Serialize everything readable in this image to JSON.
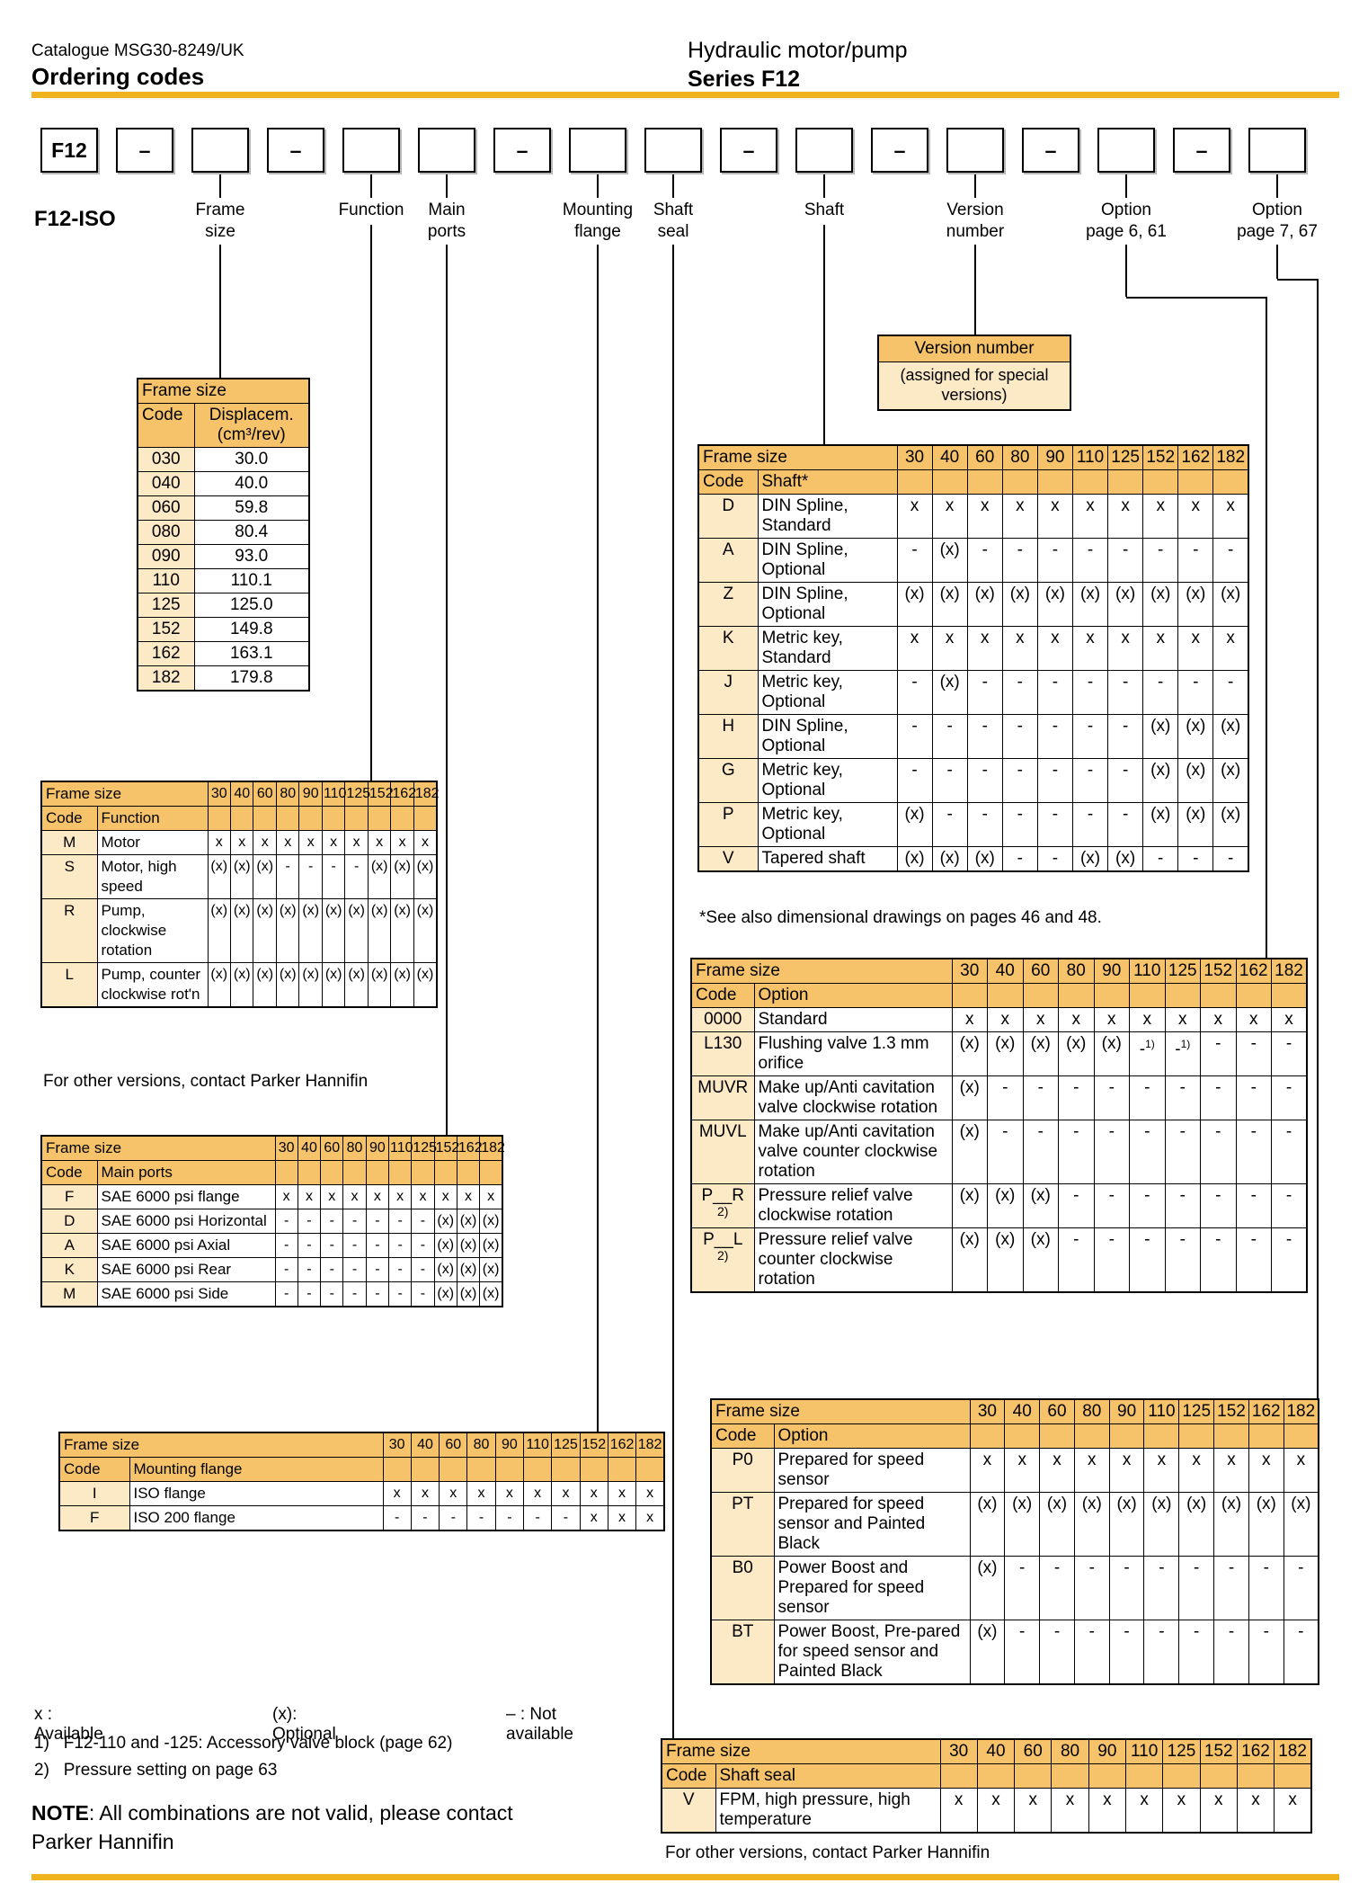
{
  "colors": {
    "header_orange": "#F7C36A",
    "cell_cream": "#FCE9C6",
    "rule_gold": "#EFB320"
  },
  "header": {
    "catalogue": "Catalogue MSG30-8249/UK",
    "section_title": "Ordering codes",
    "product": "Hydraulic motor/pump",
    "series": "Series F12"
  },
  "ordering_code": {
    "prefix": "F12",
    "model_label": "F12-ISO",
    "dash": "–",
    "boxes": [
      "F12",
      "dash",
      "blank",
      "dash",
      "blank",
      "blank",
      "dash",
      "blank",
      "blank",
      "dash",
      "blank",
      "dash",
      "blank",
      "dash",
      "blank",
      "dash",
      "blank"
    ],
    "labels": [
      {
        "line1": "Frame",
        "line2": "size"
      },
      {
        "line1": "Function",
        "line2": ""
      },
      {
        "line1": "Main",
        "line2": "ports"
      },
      {
        "line1": "Mounting",
        "line2": "flange"
      },
      {
        "line1": "Shaft",
        "line2": "seal"
      },
      {
        "line1": "Shaft",
        "line2": ""
      },
      {
        "line1": "Version",
        "line2": "number"
      },
      {
        "line1": "Option",
        "line2": "page 6, 61"
      },
      {
        "line1": "Option",
        "line2": "page 7, 67"
      }
    ]
  },
  "version_callout": {
    "title": "Version number",
    "body": "(assigned for special versions)"
  },
  "frame_sizes": [
    "30",
    "40",
    "60",
    "80",
    "90",
    "110",
    "125",
    "152",
    "162",
    "182"
  ],
  "frame_header": "Frame size",
  "code_header": "Code",
  "tables": {
    "displacement": {
      "title": "Frame size",
      "col1": "Code",
      "col2a": "Displacem.",
      "col2b": "(cm³/rev)",
      "rows": [
        [
          "030",
          "30.0"
        ],
        [
          "040",
          "40.0"
        ],
        [
          "060",
          "59.8"
        ],
        [
          "080",
          "80.4"
        ],
        [
          "090",
          "93.0"
        ],
        [
          "110",
          "110.1"
        ],
        [
          "125",
          "125.0"
        ],
        [
          "152",
          "149.8"
        ],
        [
          "162",
          "163.1"
        ],
        [
          "182",
          "179.8"
        ]
      ]
    },
    "function": {
      "type_header": "Function",
      "rows": [
        {
          "code": "M",
          "label": "Motor",
          "values": [
            "x",
            "x",
            "x",
            "x",
            "x",
            "x",
            "x",
            "x",
            "x",
            "x"
          ]
        },
        {
          "code": "S",
          "label": "Motor, high speed",
          "values": [
            "(x)",
            "(x)",
            "(x)",
            "-",
            "-",
            "-",
            "-",
            "(x)",
            "(x)",
            "(x)"
          ]
        },
        {
          "code": "R",
          "label": "Pump, clockwise rotation",
          "values": [
            "(x)",
            "(x)",
            "(x)",
            "(x)",
            "(x)",
            "(x)",
            "(x)",
            "(x)",
            "(x)",
            "(x)"
          ]
        },
        {
          "code": "L",
          "label": "Pump, counter clockwise rot'n",
          "values": [
            "(x)",
            "(x)",
            "(x)",
            "(x)",
            "(x)",
            "(x)",
            "(x)",
            "(x)",
            "(x)",
            "(x)"
          ]
        }
      ],
      "footer": "For other versions, contact Parker Hannifin"
    },
    "main_ports": {
      "type_header": "Main ports",
      "rows": [
        {
          "code": "F",
          "label": "SAE 6000 psi flange",
          "values": [
            "x",
            "x",
            "x",
            "x",
            "x",
            "x",
            "x",
            "x",
            "x",
            "x"
          ]
        },
        {
          "code": "D",
          "label": "SAE 6000 psi Horizontal",
          "values": [
            "-",
            "-",
            "-",
            "-",
            "-",
            "-",
            "-",
            "(x)",
            "(x)",
            "(x)"
          ]
        },
        {
          "code": "A",
          "label": "SAE 6000 psi Axial",
          "values": [
            "-",
            "-",
            "-",
            "-",
            "-",
            "-",
            "-",
            "(x)",
            "(x)",
            "(x)"
          ]
        },
        {
          "code": "K",
          "label": "SAE 6000 psi Rear",
          "values": [
            "-",
            "-",
            "-",
            "-",
            "-",
            "-",
            "-",
            "(x)",
            "(x)",
            "(x)"
          ]
        },
        {
          "code": "M",
          "label": "SAE 6000 psi Side",
          "values": [
            "-",
            "-",
            "-",
            "-",
            "-",
            "-",
            "-",
            "(x)",
            "(x)",
            "(x)"
          ]
        }
      ]
    },
    "mounting_flange": {
      "type_header": "Mounting flange",
      "rows": [
        {
          "code": "I",
          "label": "ISO flange",
          "values": [
            "x",
            "x",
            "x",
            "x",
            "x",
            "x",
            "x",
            "x",
            "x",
            "x"
          ]
        },
        {
          "code": "F",
          "label": "ISO 200 flange",
          "values": [
            "-",
            "-",
            "-",
            "-",
            "-",
            "-",
            "-",
            "x",
            "x",
            "x"
          ]
        }
      ]
    },
    "shaft": {
      "type_header": "Shaft*",
      "rows": [
        {
          "code": "D",
          "label": "DIN Spline, Standard",
          "values": [
            "x",
            "x",
            "x",
            "x",
            "x",
            "x",
            "x",
            "x",
            "x",
            "x"
          ]
        },
        {
          "code": "A",
          "label": "DIN Spline, Optional",
          "values": [
            "-",
            "(x)",
            "-",
            "-",
            "-",
            "-",
            "-",
            "-",
            "-",
            "-"
          ]
        },
        {
          "code": "Z",
          "label": "DIN Spline, Optional",
          "values": [
            "(x)",
            "(x)",
            "(x)",
            "(x)",
            "(x)",
            "(x)",
            "(x)",
            "(x)",
            "(x)",
            "(x)"
          ]
        },
        {
          "code": "K",
          "label": "Metric key, Standard",
          "values": [
            "x",
            "x",
            "x",
            "x",
            "x",
            "x",
            "x",
            "x",
            "x",
            "x"
          ]
        },
        {
          "code": "J",
          "label": "Metric key, Optional",
          "values": [
            "-",
            "(x)",
            "-",
            "-",
            "-",
            "-",
            "-",
            "-",
            "-",
            "-"
          ]
        },
        {
          "code": "H",
          "label": "DIN Spline, Optional",
          "values": [
            "-",
            "-",
            "-",
            "-",
            "-",
            "-",
            "-",
            "(x)",
            "(x)",
            "(x)"
          ]
        },
        {
          "code": "G",
          "label": "Metric key, Optional",
          "values": [
            "-",
            "-",
            "-",
            "-",
            "-",
            "-",
            "-",
            "(x)",
            "(x)",
            "(x)"
          ]
        },
        {
          "code": "P",
          "label": "Metric key, Optional",
          "values": [
            "(x)",
            "-",
            "-",
            "-",
            "-",
            "-",
            "-",
            "(x)",
            "(x)",
            "(x)"
          ]
        },
        {
          "code": "V",
          "label": "Tapered shaft",
          "values": [
            "(x)",
            "(x)",
            "(x)",
            "-",
            "-",
            "(x)",
            "(x)",
            "-",
            "-",
            "-"
          ]
        }
      ],
      "footnote": "*See also dimensional drawings on pages 46 and 48."
    },
    "option1": {
      "type_header": "Option",
      "rows": [
        {
          "code": "0000",
          "label": "Standard",
          "values": [
            "x",
            "x",
            "x",
            "x",
            "x",
            "x",
            "x",
            "x",
            "x",
            "x"
          ]
        },
        {
          "code": "L130",
          "label": "Flushing valve 1.3 mm orifice",
          "values": [
            "(x)",
            "(x)",
            "(x)",
            "(x)",
            "(x)",
            "-1)",
            "-1)",
            "-",
            "-",
            "-"
          ]
        },
        {
          "code": "MUVR",
          "label": "Make up/Anti cavitation valve clockwise rotation",
          "values": [
            "(x)",
            "-",
            "-",
            "-",
            "-",
            "-",
            "-",
            "-",
            "-",
            "-"
          ]
        },
        {
          "code": "MUVL",
          "label": "Make up/Anti cavitation valve counter clockwise rotation",
          "values": [
            "(x)",
            "-",
            "-",
            "-",
            "-",
            "-",
            "-",
            "-",
            "-",
            "-"
          ]
        },
        {
          "code": "P__R",
          "sub": "2)",
          "label": "Pressure relief valve clockwise rotation",
          "values": [
            "(x)",
            "(x)",
            "(x)",
            "-",
            "-",
            "-",
            "-",
            "-",
            "-",
            "-"
          ]
        },
        {
          "code": "P__L",
          "sub": "2)",
          "label": "Pressure relief valve counter clockwise rotation",
          "values": [
            "(x)",
            "(x)",
            "(x)",
            "-",
            "-",
            "-",
            "-",
            "-",
            "-",
            "-"
          ]
        }
      ]
    },
    "option2": {
      "type_header": "Option",
      "rows": [
        {
          "code": "P0",
          "label": "Prepared for speed sensor",
          "values": [
            "x",
            "x",
            "x",
            "x",
            "x",
            "x",
            "x",
            "x",
            "x",
            "x"
          ]
        },
        {
          "code": "PT",
          "label": "Prepared for speed sensor and Painted Black",
          "values": [
            "(x)",
            "(x)",
            "(x)",
            "(x)",
            "(x)",
            "(x)",
            "(x)",
            "(x)",
            "(x)",
            "(x)"
          ]
        },
        {
          "code": "B0",
          "label": "Power Boost and Prepared for speed sensor",
          "values": [
            "(x)",
            "-",
            "-",
            "-",
            "-",
            "-",
            "-",
            "-",
            "-",
            "-"
          ]
        },
        {
          "code": "BT",
          "label": "Power Boost, Pre-pared for speed sensor and Painted Black",
          "values": [
            "(x)",
            "-",
            "-",
            "-",
            "-",
            "-",
            "-",
            "-",
            "-",
            "-"
          ]
        }
      ]
    },
    "shaft_seal": {
      "type_header": "Shaft seal",
      "rows": [
        {
          "code": "V",
          "label": "FPM, high pressure, high temperature",
          "values": [
            "x",
            "x",
            "x",
            "x",
            "x",
            "x",
            "x",
            "x",
            "x",
            "x"
          ]
        }
      ],
      "footer": "For other versions, contact Parker Hannifin"
    }
  },
  "legend": {
    "available": "x : Available",
    "optional": "(x): Optional",
    "not_available": "– : Not available"
  },
  "footnotes": [
    {
      "num": "1)",
      "text": "F12-110 and -125: Accessory valve block (page 62)"
    },
    {
      "num": "2)",
      "text": "Pressure setting on page 63"
    }
  ],
  "note": {
    "bold": "NOTE",
    "rest": ": All combinations are not valid, please contact Parker Hannifin"
  }
}
